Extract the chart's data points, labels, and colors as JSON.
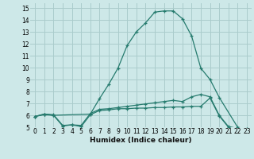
{
  "bg_color": "#cde8e8",
  "grid_color": "#aacccc",
  "line_color": "#267b6e",
  "x_label": "Humidex (Indice chaleur)",
  "ylim": [
    5,
    15.4
  ],
  "xlim": [
    -0.5,
    23.5
  ],
  "yticks": [
    5,
    6,
    7,
    8,
    9,
    10,
    11,
    12,
    13,
    14,
    15
  ],
  "xticks": [
    0,
    1,
    2,
    3,
    4,
    5,
    6,
    7,
    8,
    9,
    10,
    11,
    12,
    13,
    14,
    15,
    16,
    17,
    18,
    19,
    20,
    21,
    22,
    23
  ],
  "series": [
    {
      "x": [
        0,
        1,
        2,
        6,
        7,
        8,
        9,
        10,
        11,
        12,
        13,
        14,
        15,
        16,
        17,
        18,
        19,
        20,
        22,
        23
      ],
      "y": [
        5.9,
        6.1,
        6.0,
        6.1,
        7.4,
        8.6,
        9.95,
        11.85,
        13.0,
        13.75,
        14.65,
        14.75,
        14.75,
        14.1,
        12.65,
        9.95,
        9.0,
        7.5,
        5.0,
        4.85
      ]
    },
    {
      "x": [
        0,
        1,
        2,
        3,
        4,
        5,
        6,
        7,
        8,
        9,
        10,
        11,
        12,
        13,
        14,
        15,
        16,
        17,
        18,
        19,
        20,
        21,
        22,
        23
      ],
      "y": [
        5.9,
        6.1,
        6.05,
        5.15,
        5.2,
        5.15,
        6.15,
        6.5,
        6.55,
        6.65,
        6.75,
        6.85,
        6.95,
        7.05,
        7.15,
        7.25,
        7.15,
        7.55,
        7.75,
        7.55,
        6.0,
        5.05,
        4.9,
        4.85
      ]
    },
    {
      "x": [
        0,
        1,
        2,
        3,
        4,
        5,
        6,
        7,
        8,
        9,
        10,
        11,
        12,
        13,
        14,
        15,
        16,
        17,
        18,
        19,
        20,
        21,
        22,
        23
      ],
      "y": [
        5.9,
        6.05,
        6.0,
        5.1,
        5.2,
        5.05,
        6.05,
        6.4,
        6.45,
        6.55,
        6.55,
        6.6,
        6.6,
        6.65,
        6.65,
        6.7,
        6.7,
        6.75,
        6.75,
        7.45,
        5.95,
        5.0,
        4.85,
        4.8
      ]
    }
  ]
}
